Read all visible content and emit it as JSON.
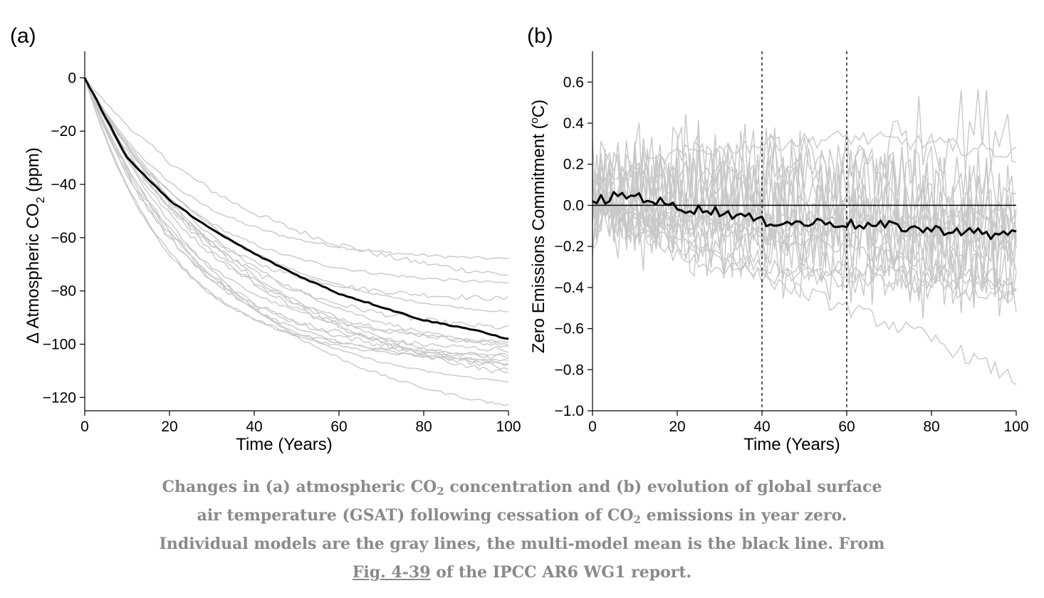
{
  "chart_data": [
    {
      "type": "line",
      "panel_label": "(a)",
      "xlabel": "Time (Years)",
      "ylabel_main": "Δ Atmospheric CO",
      "ylabel_sub": "2",
      "ylabel_tail": " (ppm)",
      "xlim": [
        0,
        100
      ],
      "ylim": [
        -125,
        10
      ],
      "xticks": [
        0,
        20,
        40,
        60,
        80,
        100
      ],
      "yticks": [
        0,
        -20,
        -40,
        -60,
        -80,
        -100,
        -120
      ],
      "ytick_labels": [
        "0",
        "−20",
        "−40",
        "−60",
        "−80",
        "−100",
        "−120"
      ],
      "model_color": "#c8c8c8",
      "mean_color": "#000000",
      "model_final_values": [
        -68,
        -74,
        -77,
        -83,
        -88,
        -94,
        -99,
        -100,
        -101,
        -102,
        -104,
        -105,
        -106,
        -107,
        -108,
        -109,
        -111,
        -114,
        -123
      ],
      "mean_values": {
        "x": [
          0,
          10,
          20,
          30,
          40,
          50,
          60,
          70,
          80,
          90,
          100
        ],
        "y": [
          0,
          -30,
          -46,
          -57,
          -66,
          -74,
          -81,
          -86,
          -91,
          -94,
          -98
        ]
      }
    },
    {
      "type": "line",
      "panel_label": "(b)",
      "xlabel": "Time (Years)",
      "ylabel_main": "Zero Emissions Commitment (",
      "ylabel_sup": "o",
      "ylabel_tail": "C)",
      "xlim": [
        0,
        100
      ],
      "ylim": [
        -1.0,
        0.75
      ],
      "xticks": [
        0,
        20,
        40,
        60,
        80,
        100
      ],
      "yticks": [
        0.6,
        0.4,
        0.2,
        0.0,
        -0.2,
        -0.4,
        -0.6,
        -0.8,
        -1.0
      ],
      "ytick_labels": [
        "0.6",
        "0.4",
        "0.2",
        "0.0",
        "−0.2",
        "−0.4",
        "−0.6",
        "−0.8",
        "−1.0"
      ],
      "vertical_lines": [
        40,
        60
      ],
      "model_color": "#c8c8c8",
      "mean_color": "#000000",
      "model_count": 20,
      "mean_values": {
        "x": [
          0,
          5,
          10,
          15,
          20,
          25,
          30,
          35,
          40,
          45,
          50,
          55,
          60,
          65,
          70,
          75,
          80,
          85,
          90,
          95,
          100
        ],
        "y": [
          0.02,
          0.04,
          0.05,
          0.02,
          -0.01,
          -0.02,
          -0.03,
          -0.05,
          -0.08,
          -0.08,
          -0.09,
          -0.08,
          -0.09,
          -0.1,
          -0.1,
          -0.11,
          -0.12,
          -0.12,
          -0.13,
          -0.15,
          -0.12
        ]
      }
    }
  ],
  "caption": {
    "line1_a": "Changes in (a) atmospheric CO",
    "line1_sub": "2",
    "line1_b": " concentration and (b) evolution of global surface",
    "line2_a": "air temperature (GSAT) following cessation of CO",
    "line2_sub": "2",
    "line2_b": " emissions in year zero.",
    "line3": "Individual models are the gray lines, the multi-model mean is the black line. From",
    "link": "Fig. 4-39",
    "line4_b": " of the IPCC AR6 WG1 report."
  }
}
